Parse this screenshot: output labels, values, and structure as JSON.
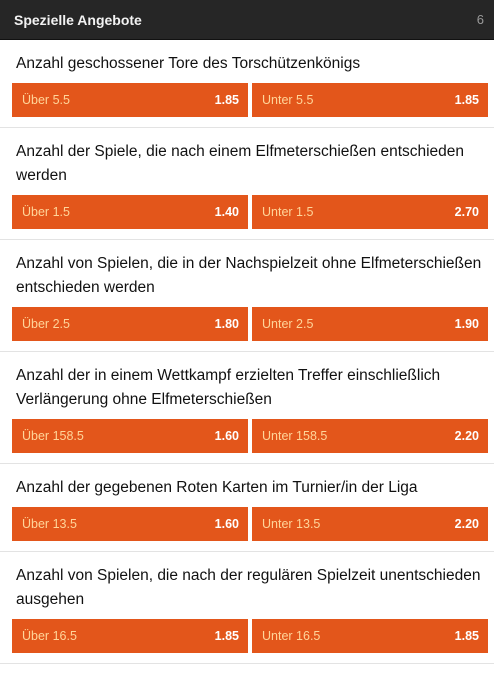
{
  "header": {
    "title": "Spezielle Angebote",
    "count": "6"
  },
  "colors": {
    "header_bg": "#262626",
    "button_bg": "#e3561b",
    "button_label": "#ffd59a"
  },
  "markets": [
    {
      "question": "Anzahl geschossener Tore des Torschützenkönigs",
      "over": {
        "label": "Über 5.5",
        "odds": "1.85"
      },
      "under": {
        "label": "Unter 5.5",
        "odds": "1.85"
      }
    },
    {
      "question": "Anzahl der Spiele, die nach einem Elfmeterschießen entschieden werden",
      "over": {
        "label": "Über 1.5",
        "odds": "1.40"
      },
      "under": {
        "label": "Unter 1.5",
        "odds": "2.70"
      }
    },
    {
      "question": "Anzahl von Spielen, die in der Nachspielzeit ohne Elfmeterschießen entschieden werden",
      "over": {
        "label": "Über 2.5",
        "odds": "1.80"
      },
      "under": {
        "label": "Unter 2.5",
        "odds": "1.90"
      }
    },
    {
      "question": "Anzahl der in einem Wettkampf erzielten Treffer einschließlich Verlängerung ohne Elfmeterschießen",
      "over": {
        "label": "Über 158.5",
        "odds": "1.60"
      },
      "under": {
        "label": "Unter 158.5",
        "odds": "2.20"
      }
    },
    {
      "question": "Anzahl der gegebenen Roten Karten im Turnier/in der Liga",
      "over": {
        "label": "Über 13.5",
        "odds": "1.60"
      },
      "under": {
        "label": "Unter 13.5",
        "odds": "2.20"
      }
    },
    {
      "question": "Anzahl von Spielen, die nach der regulären Spielzeit unentschieden ausgehen",
      "over": {
        "label": "Über 16.5",
        "odds": "1.85"
      },
      "under": {
        "label": "Unter 16.5",
        "odds": "1.85"
      }
    }
  ]
}
